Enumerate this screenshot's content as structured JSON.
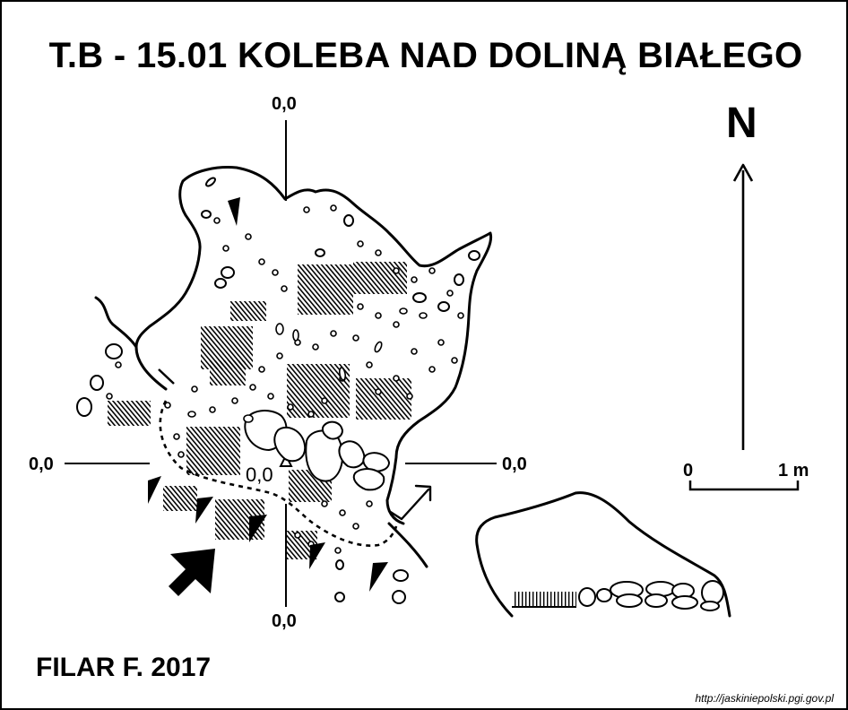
{
  "title": "T.B - 15.01  KOLEBA NAD DOLINĄ BIAŁEGO",
  "north_label": "N",
  "datum_labels": {
    "top": "0,0",
    "left": "0,0",
    "right": "0,0",
    "bottom": "0,0",
    "center": "0,0"
  },
  "scale_bar": {
    "start": "0",
    "end": "1 m"
  },
  "author": "FILAR F. 2017",
  "source": "http://jaskiniepolski.pgi.gov.pl",
  "colors": {
    "ink": "#000000",
    "paper": "#ffffff"
  }
}
